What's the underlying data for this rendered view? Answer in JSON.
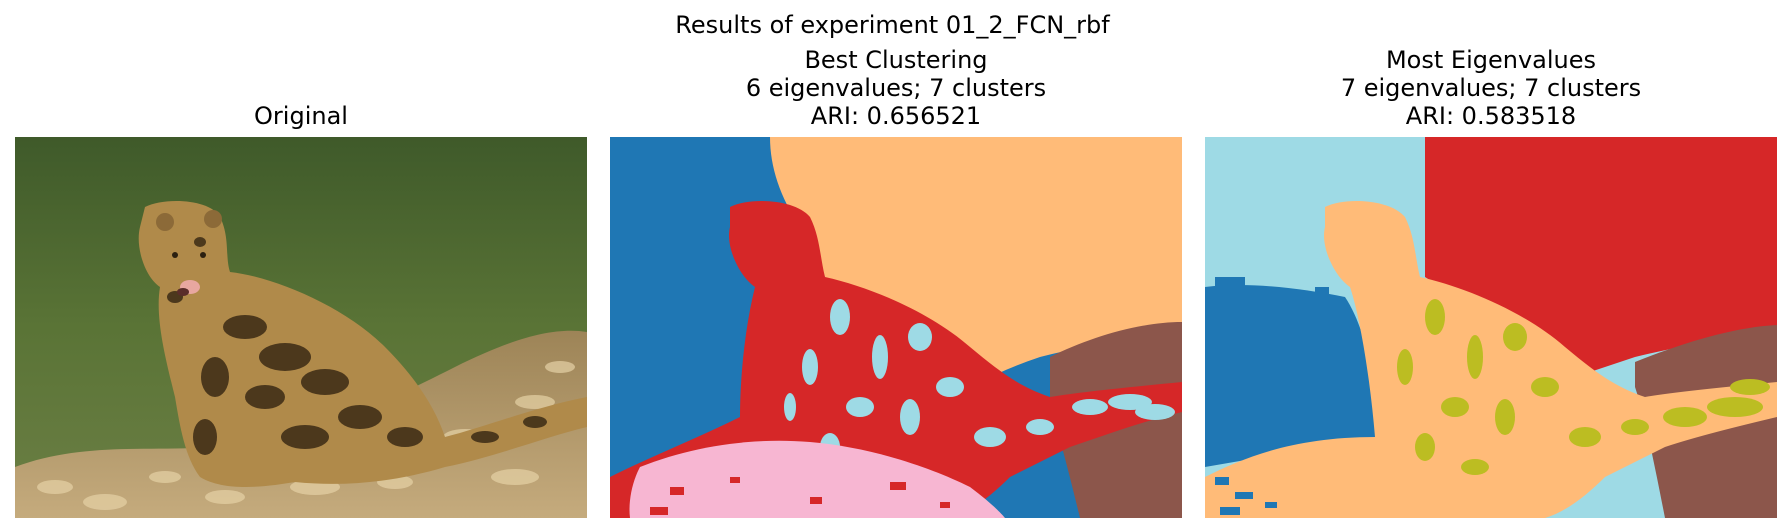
{
  "suptitle": "Results of experiment 01_2_FCN_rbf",
  "panels": [
    {
      "title_lines": [
        "Original"
      ],
      "image": "photo of a clouded leopard sitting on rocks by water"
    },
    {
      "title_lines": [
        "Best Clustering",
        "6 eigenvalues; 7 clusters",
        "ARI: 0.656521"
      ],
      "image": "segmentation map of the leopard photo"
    },
    {
      "title_lines": [
        "Most Eigenvalues",
        "7 eigenvalues; 7 clusters",
        "ARI: 0.583518"
      ],
      "image": "segmentation map of the leopard photo"
    }
  ],
  "colors": {
    "water_green": "#4e6a2c",
    "rock_beige": "#b89a6a",
    "leopard_tan": "#a07a3f",
    "seg_blue": "#1f77b4",
    "seg_orange_light": "#ffbb78",
    "seg_red": "#d62728",
    "seg_lightblue": "#9edae5",
    "seg_pink": "#f7b6d2",
    "seg_brown": "#8c564b",
    "seg_olive": "#bcbd22"
  }
}
